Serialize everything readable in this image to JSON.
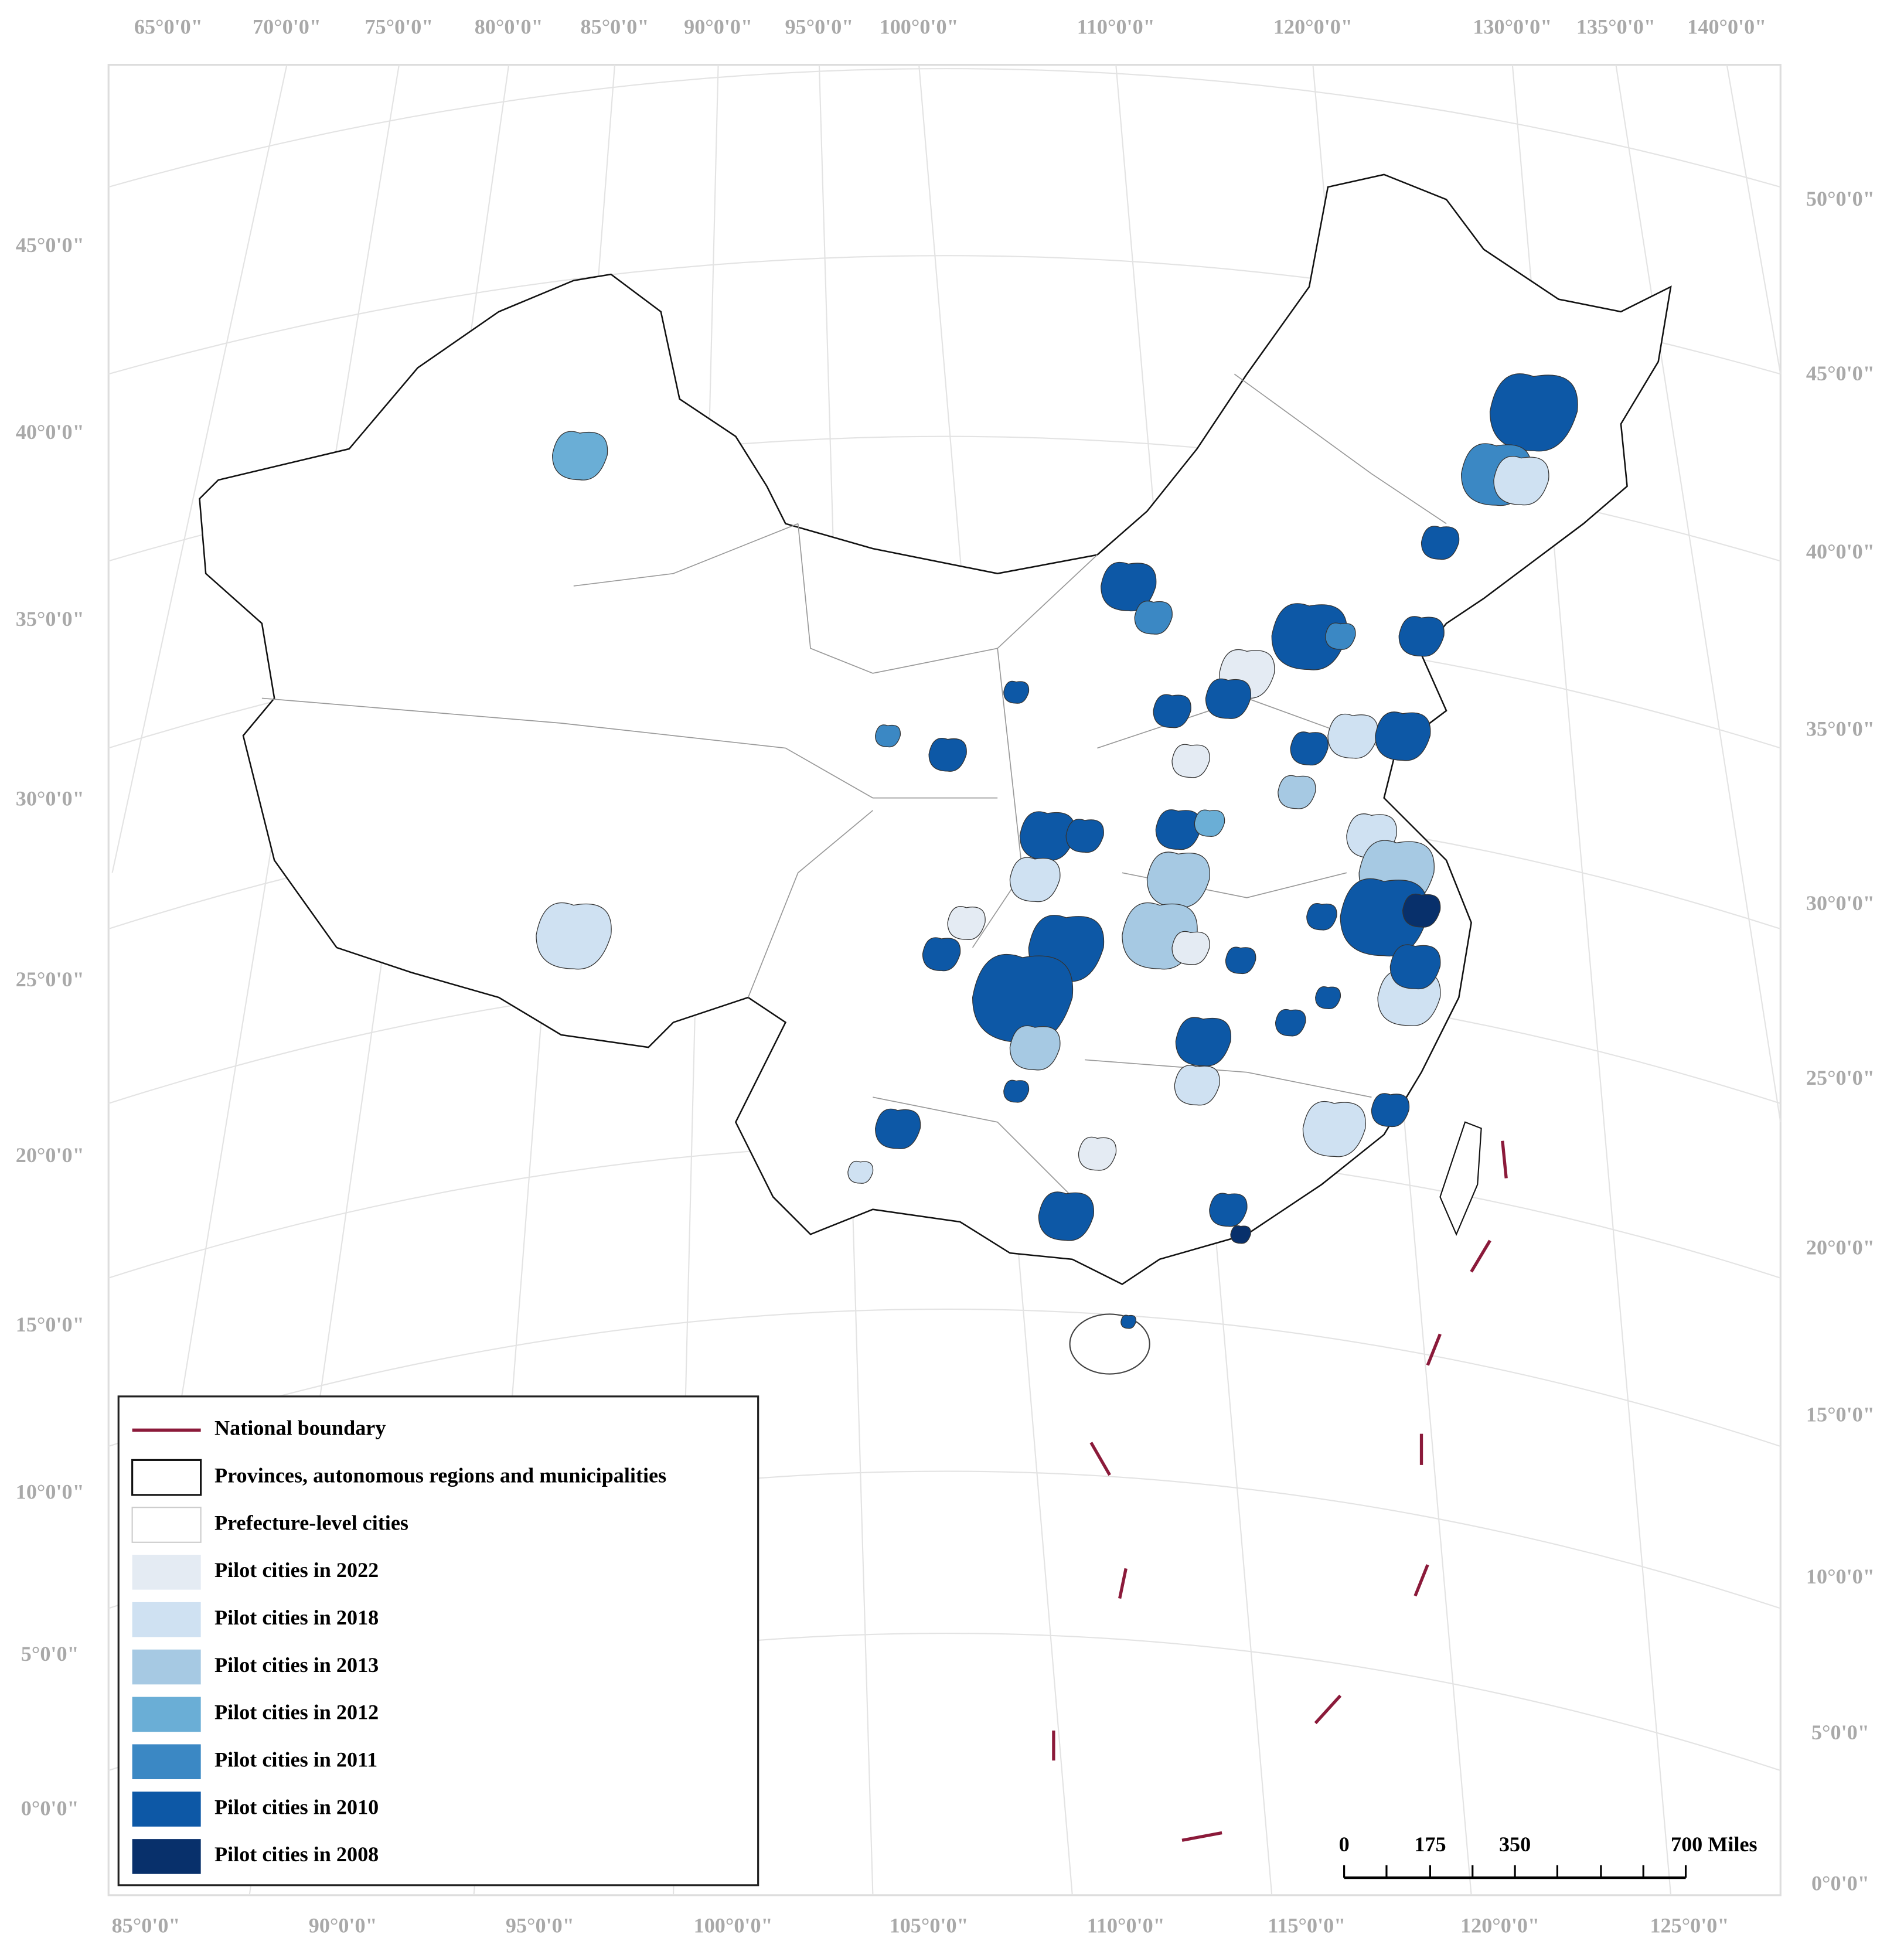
{
  "map": {
    "graticule": {
      "top": [
        "65°0'0\"",
        "70°0'0\"",
        "75°0'0\"",
        "80°0'0\"",
        "85°0'0\"",
        "90°0'0\"",
        "95°0'0\"",
        "100°0'0\"",
        "110°0'0\"",
        "120°0'0\"",
        "130°0'0\"",
        "135°0'0\"",
        "140°0'0\""
      ],
      "bottom": [
        "85°0'0\"",
        "90°0'0\"",
        "95°0'0\"",
        "100°0'0\"",
        "105°0'0\"",
        "110°0'0\"",
        "115°0'0\"",
        "120°0'0\"",
        "125°0'0\""
      ],
      "left": [
        "45°0'0\"",
        "40°0'0\"",
        "35°0'0\"",
        "30°0'0\"",
        "25°0'0\"",
        "20°0'0\"",
        "15°0'0\"",
        "10°0'0\"",
        "5°0'0\"",
        "0°0'0\""
      ],
      "right": [
        "50°0'0\"",
        "45°0'0\"",
        "40°0'0\"",
        "35°0'0\"",
        "30°0'0\"",
        "25°0'0\"",
        "20°0'0\"",
        "15°0'0\"",
        "10°0'0\"",
        "5°0'0\"",
        "0°0'0\""
      ]
    },
    "legend": [
      {
        "label": "National boundary",
        "color": "#8b1a3a"
      },
      {
        "label": "Provinces, autonomous regions and municipalities",
        "color": "#ffffff"
      },
      {
        "label": "Prefecture-level cities",
        "color": "#ffffff"
      },
      {
        "label": "Pilot cities in 2022",
        "color": "#e4ebf3"
      },
      {
        "label": "Pilot cities in 2018",
        "color": "#cfe1f2"
      },
      {
        "label": "Pilot cities in 2013",
        "color": "#a6c9e3"
      },
      {
        "label": "Pilot cities in 2012",
        "color": "#6aaed6"
      },
      {
        "label": "Pilot cities in 2011",
        "color": "#3b88c4"
      },
      {
        "label": "Pilot cities in 2010",
        "color": "#0d58a6"
      },
      {
        "label": "Pilot cities in 2008",
        "color": "#08306b"
      }
    ],
    "scale_bar": [
      "0",
      "175",
      "350",
      "700 Miles"
    ]
  }
}
